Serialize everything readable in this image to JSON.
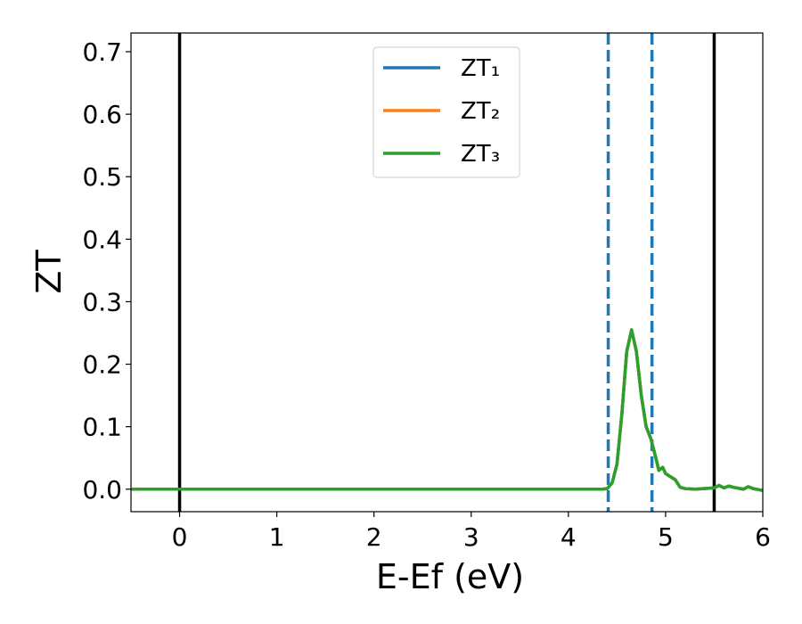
{
  "chart_data": {
    "type": "line",
    "xlabel": "E-Ef (eV)",
    "ylabel": "ZT",
    "xlim": [
      -0.5,
      6
    ],
    "ylim": [
      -0.036,
      0.73
    ],
    "xticks": [
      0,
      1,
      2,
      3,
      4,
      5,
      6
    ],
    "yticks": [
      {
        "value": 0,
        "label": "0.0"
      },
      0.1,
      0.2,
      0.3,
      0.4,
      0.5,
      0.6,
      0.7
    ],
    "x": [
      -0.5,
      0,
      1,
      2,
      3,
      4,
      4.35,
      4.4,
      4.45,
      4.5,
      4.55,
      4.6,
      4.65,
      4.7,
      4.75,
      4.8,
      4.85,
      4.9,
      4.93,
      4.97,
      5.0,
      5.05,
      5.1,
      5.15,
      5.2,
      5.3,
      5.5,
      5.55,
      5.6,
      5.65,
      5.7,
      5.8,
      5.85,
      5.9,
      6.0
    ],
    "series": [
      {
        "name": "ZT₁",
        "color": "#1f77b4",
        "values": [
          0,
          0,
          0,
          0,
          0,
          0,
          0,
          0.001,
          0.01,
          0.04,
          0.12,
          0.22,
          0.255,
          0.22,
          0.15,
          0.1,
          0.08,
          0.05,
          0.03,
          0.035,
          0.025,
          0.02,
          0.015,
          0.003,
          0.001,
          0,
          0.002,
          0.006,
          0.002,
          0.005,
          0.003,
          0,
          0.004,
          0.001,
          -0.002
        ]
      },
      {
        "name": "ZT₂",
        "color": "#ff7f0e",
        "values": [
          0,
          0,
          0,
          0,
          0,
          0,
          0,
          0.001,
          0.01,
          0.04,
          0.12,
          0.22,
          0.255,
          0.22,
          0.15,
          0.1,
          0.08,
          0.05,
          0.03,
          0.035,
          0.025,
          0.02,
          0.015,
          0.003,
          0.001,
          0,
          0.002,
          0.006,
          0.002,
          0.005,
          0.003,
          0,
          0.004,
          0.001,
          -0.002
        ]
      },
      {
        "name": "ZT₃",
        "color": "#2ca02c",
        "values": [
          0,
          0,
          0,
          0,
          0,
          0,
          0,
          0.001,
          0.01,
          0.04,
          0.12,
          0.22,
          0.255,
          0.22,
          0.15,
          0.1,
          0.08,
          0.05,
          0.03,
          0.035,
          0.025,
          0.02,
          0.015,
          0.003,
          0.001,
          0,
          0.002,
          0.006,
          0.002,
          0.005,
          0.003,
          0,
          0.004,
          0.001,
          -0.002
        ]
      }
    ],
    "vlines": [
      {
        "x": 0,
        "color": "#000000",
        "style": "solid"
      },
      {
        "x": 5.5,
        "color": "#000000",
        "style": "solid"
      },
      {
        "x": 4.41,
        "color": "#1f77b4",
        "style": "dashed"
      },
      {
        "x": 4.86,
        "color": "#1f77b4",
        "style": "dashed"
      }
    ],
    "legend": "upper center"
  }
}
